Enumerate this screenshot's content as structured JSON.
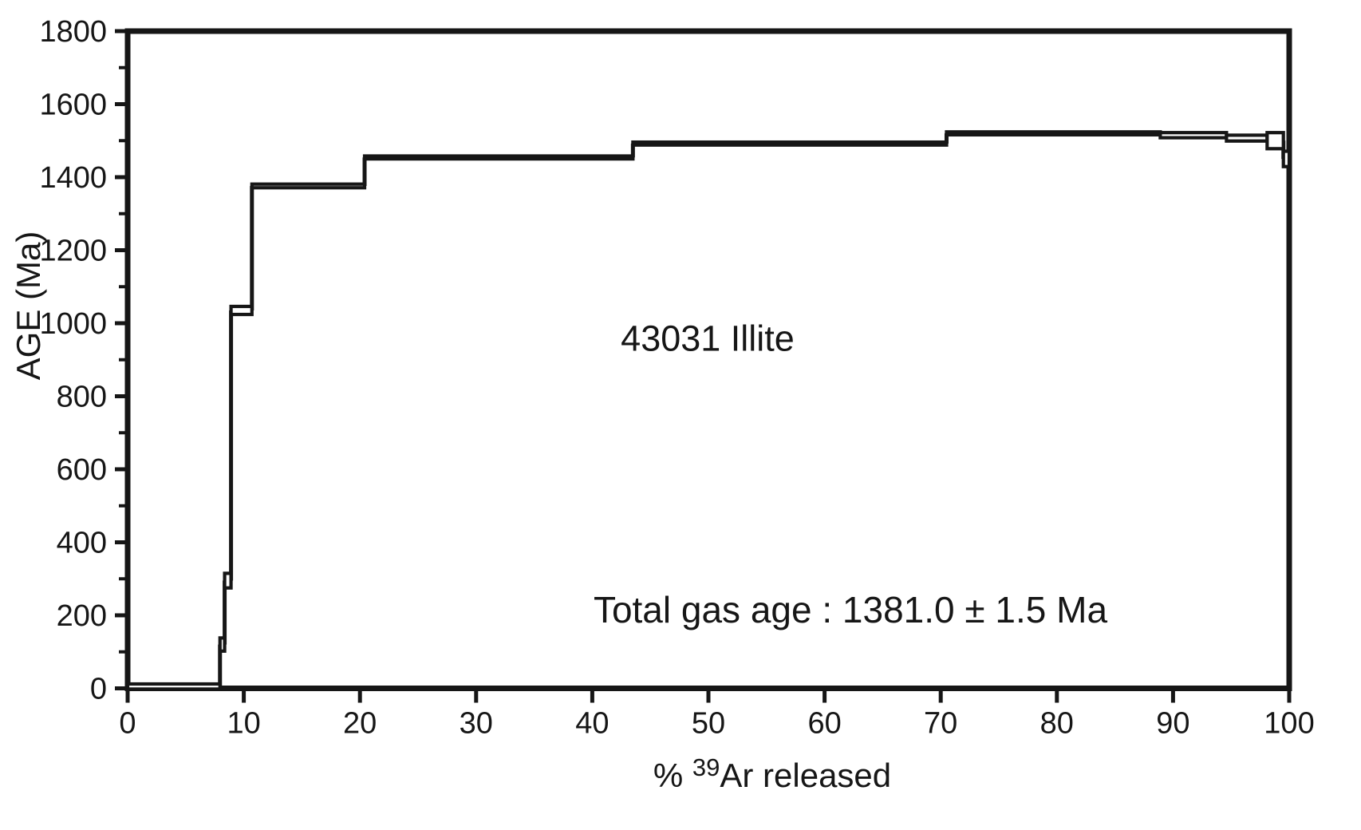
{
  "colors": {
    "ink": "#161616",
    "background": "#ffffff"
  },
  "chart_data": {
    "type": "line",
    "subtype": "argon-age-spectrum-steps",
    "title": "43031 Illite",
    "annotation": "Total gas age : 1381.0 ± 1.5 Ma",
    "total_gas_age_ma": 1381.0,
    "total_gas_age_uncertainty_ma": 1.5,
    "unit": "Ma",
    "ylabel": "AGE (Ma)",
    "xlabel": "% 39Ar released",
    "xlabel_parts": {
      "prefix": "% ",
      "superscript": "39",
      "suffix": "Ar released"
    },
    "xlim": [
      0,
      100
    ],
    "ylim": [
      0,
      1800
    ],
    "grid": false,
    "x_ticks": [
      0,
      10,
      20,
      30,
      40,
      50,
      60,
      70,
      80,
      90,
      100
    ],
    "y_ticks_major": [
      0,
      200,
      400,
      600,
      800,
      1000,
      1200,
      1400,
      1600,
      1800
    ],
    "y_ticks_minor": [
      100,
      300,
      500,
      700,
      900,
      1100,
      1300,
      1500,
      1700
    ],
    "steps": [
      {
        "x_start_pct": 0.0,
        "x_end_pct": 7.95,
        "age_ma": 5,
        "err_ma": 7
      },
      {
        "x_start_pct": 7.95,
        "x_end_pct": 8.35,
        "age_ma": 120,
        "err_ma": 18
      },
      {
        "x_start_pct": 8.35,
        "x_end_pct": 8.9,
        "age_ma": 295,
        "err_ma": 20
      },
      {
        "x_start_pct": 8.9,
        "x_end_pct": 10.7,
        "age_ma": 1035,
        "err_ma": 11
      },
      {
        "x_start_pct": 10.7,
        "x_end_pct": 20.4,
        "age_ma": 1376,
        "err_ma": 5
      },
      {
        "x_start_pct": 20.4,
        "x_end_pct": 43.5,
        "age_ma": 1454,
        "err_ma": 4
      },
      {
        "x_start_pct": 43.5,
        "x_end_pct": 70.5,
        "age_ma": 1492,
        "err_ma": 4
      },
      {
        "x_start_pct": 70.5,
        "x_end_pct": 88.9,
        "age_ma": 1520,
        "err_ma": 4
      },
      {
        "x_start_pct": 88.9,
        "x_end_pct": 94.6,
        "age_ma": 1515,
        "err_ma": 7
      },
      {
        "x_start_pct": 94.6,
        "x_end_pct": 98.1,
        "age_ma": 1507,
        "err_ma": 8
      },
      {
        "x_start_pct": 98.1,
        "x_end_pct": 99.5,
        "age_ma": 1500,
        "err_ma": 22
      },
      {
        "x_start_pct": 99.5,
        "x_end_pct": 100.0,
        "age_ma": 1450,
        "err_ma": 21
      }
    ]
  }
}
